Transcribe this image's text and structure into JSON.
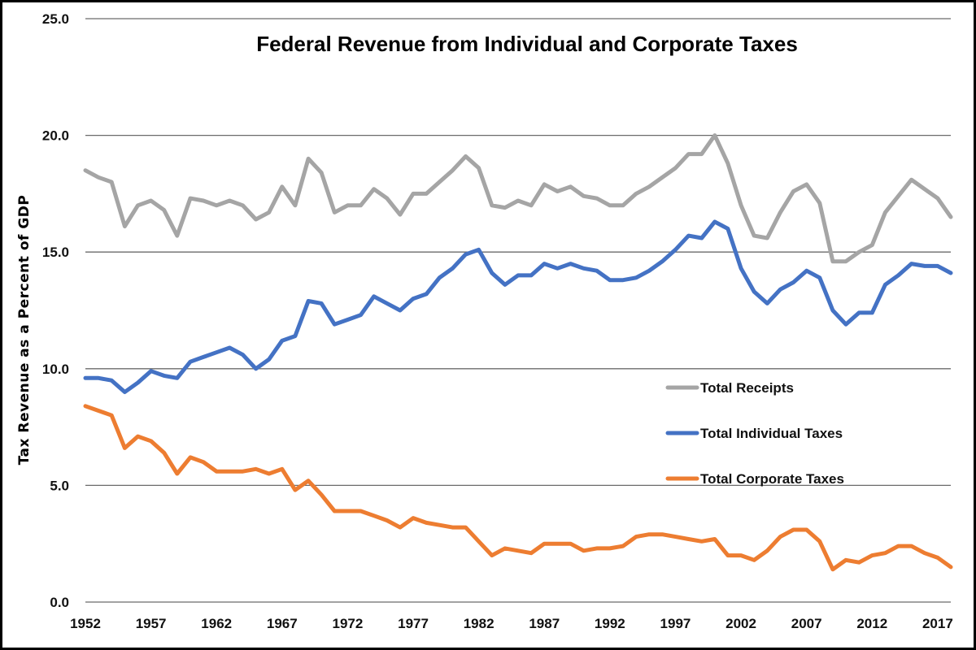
{
  "chart_data": {
    "type": "line",
    "title": "Federal Revenue from Individual and Corporate Taxes",
    "xlabel": "",
    "ylabel": "Tax Revenue as a  Percent of GDP",
    "ylim": [
      0,
      25
    ],
    "y_ticks": [
      "0.0",
      "5.0",
      "10.0",
      "15.0",
      "20.0",
      "25.0"
    ],
    "x_tick_labels": [
      "1952",
      "1957",
      "1962",
      "1967",
      "1972",
      "1977",
      "1982",
      "1987",
      "1992",
      "1997",
      "2002",
      "2007",
      "2012",
      "2017"
    ],
    "grid": "horizontal",
    "legend_position": "right",
    "x": [
      1952,
      1953,
      1954,
      1955,
      1956,
      1957,
      1958,
      1959,
      1960,
      1961,
      1962,
      1963,
      1964,
      1965,
      1966,
      1967,
      1968,
      1969,
      1970,
      1971,
      1972,
      1973,
      1974,
      1975,
      1976,
      1977,
      1978,
      1979,
      1980,
      1981,
      1982,
      1983,
      1984,
      1985,
      1986,
      1987,
      1988,
      1989,
      1990,
      1991,
      1992,
      1993,
      1994,
      1995,
      1996,
      1997,
      1998,
      1999,
      2000,
      2001,
      2002,
      2003,
      2004,
      2005,
      2006,
      2007,
      2008,
      2009,
      2010,
      2011,
      2012,
      2013,
      2014,
      2015,
      2016,
      2017,
      2018
    ],
    "series": [
      {
        "name": "Total Receipts",
        "color": "#a5a5a5",
        "values": [
          18.5,
          18.2,
          18.0,
          16.1,
          17.0,
          17.2,
          16.8,
          15.7,
          17.3,
          17.2,
          17.0,
          17.2,
          17.0,
          16.4,
          16.7,
          17.8,
          17.0,
          19.0,
          18.4,
          16.7,
          17.0,
          17.0,
          17.7,
          17.3,
          16.6,
          17.5,
          17.5,
          18.0,
          18.5,
          19.1,
          18.6,
          17.0,
          16.9,
          17.2,
          17.0,
          17.9,
          17.6,
          17.8,
          17.4,
          17.3,
          17.0,
          17.0,
          17.5,
          17.8,
          18.2,
          18.6,
          19.2,
          19.2,
          20.0,
          18.8,
          17.0,
          15.7,
          15.6,
          16.7,
          17.6,
          17.9,
          17.1,
          14.6,
          14.6,
          15.0,
          15.3,
          16.7,
          17.4,
          18.1,
          17.7,
          17.3,
          16.5
        ]
      },
      {
        "name": "Total Individual Taxes",
        "color": "#4472c4",
        "values": [
          9.6,
          9.6,
          9.5,
          9.0,
          9.4,
          9.9,
          9.7,
          9.6,
          10.3,
          10.5,
          10.7,
          10.9,
          10.6,
          10.0,
          10.4,
          11.2,
          11.4,
          12.9,
          12.8,
          11.9,
          12.1,
          12.3,
          13.1,
          12.8,
          12.5,
          13.0,
          13.2,
          13.9,
          14.3,
          14.9,
          15.1,
          14.1,
          13.6,
          14.0,
          14.0,
          14.5,
          14.3,
          14.5,
          14.3,
          14.2,
          13.8,
          13.8,
          13.9,
          14.2,
          14.6,
          15.1,
          15.7,
          15.6,
          16.3,
          16.0,
          14.3,
          13.3,
          12.8,
          13.4,
          13.7,
          14.2,
          13.9,
          12.5,
          11.9,
          12.4,
          12.4,
          13.6,
          14.0,
          14.5,
          14.4,
          14.4,
          14.1
        ]
      },
      {
        "name": "Total Corporate Taxes",
        "color": "#ed7d31",
        "values": [
          8.4,
          8.2,
          8.0,
          6.6,
          7.1,
          6.9,
          6.4,
          5.5,
          6.2,
          6.0,
          5.6,
          5.6,
          5.6,
          5.7,
          5.5,
          5.7,
          4.8,
          5.2,
          4.6,
          3.9,
          3.9,
          3.9,
          3.7,
          3.5,
          3.2,
          3.6,
          3.4,
          3.3,
          3.2,
          3.2,
          2.6,
          2.0,
          2.3,
          2.2,
          2.1,
          2.5,
          2.5,
          2.5,
          2.2,
          2.3,
          2.3,
          2.4,
          2.8,
          2.9,
          2.9,
          2.8,
          2.7,
          2.6,
          2.7,
          2.0,
          2.0,
          1.8,
          2.2,
          2.8,
          3.1,
          3.1,
          2.6,
          1.4,
          1.8,
          1.7,
          2.0,
          2.1,
          2.4,
          2.4,
          2.1,
          1.9,
          1.5
        ]
      }
    ]
  }
}
